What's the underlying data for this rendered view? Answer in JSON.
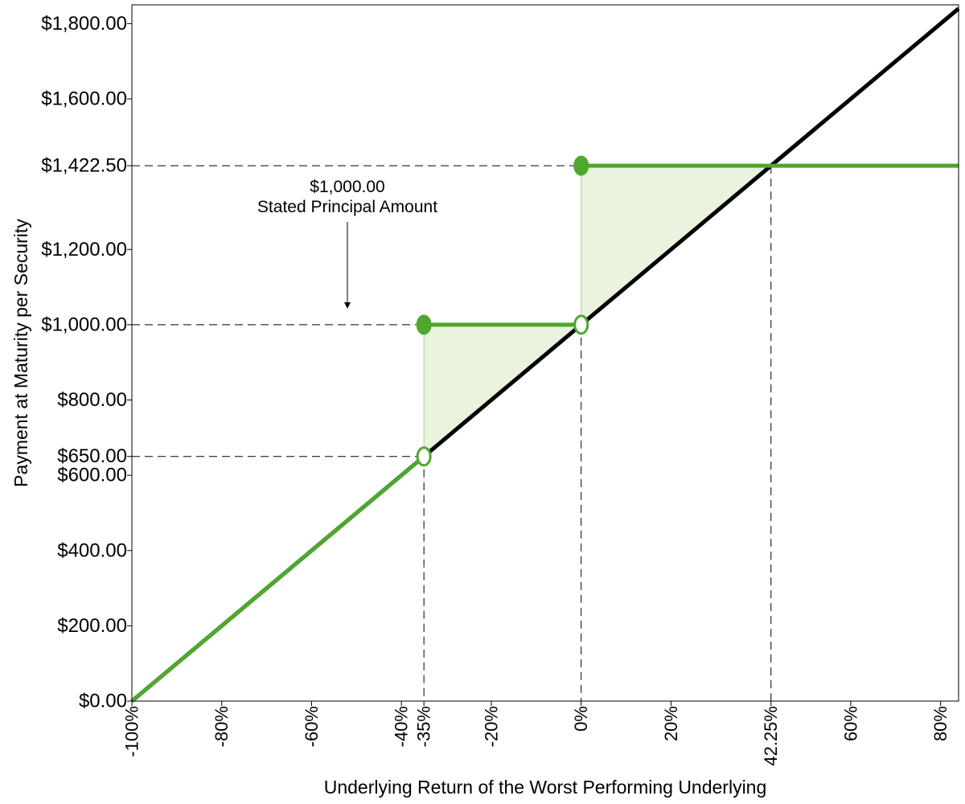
{
  "chart_data": {
    "type": "line",
    "xlabel": "Underlying Return of the Worst Performing Underlying",
    "ylabel": "Payment at Maturity per Security",
    "xlim": [
      -100,
      84
    ],
    "ylim": [
      0,
      1850
    ],
    "x_ticks": [
      {
        "value": -100,
        "label": "-100%"
      },
      {
        "value": -80,
        "label": "-80%"
      },
      {
        "value": -60,
        "label": "-60%"
      },
      {
        "value": -40,
        "label": "-40%"
      },
      {
        "value": -35,
        "label": "-35%"
      },
      {
        "value": -20,
        "label": "-20%"
      },
      {
        "value": 0,
        "label": "0%"
      },
      {
        "value": 20,
        "label": "20%"
      },
      {
        "value": 42.25,
        "label": "42.25%"
      },
      {
        "value": 60,
        "label": "60%"
      },
      {
        "value": 80,
        "label": "80%"
      }
    ],
    "y_ticks": [
      {
        "value": 0,
        "label": "$0.00"
      },
      {
        "value": 200,
        "label": "$200.00"
      },
      {
        "value": 400,
        "label": "$400.00"
      },
      {
        "value": 600,
        "label": "$600.00"
      },
      {
        "value": 650,
        "label": "$650.00"
      },
      {
        "value": 800,
        "label": "$800.00"
      },
      {
        "value": 1000,
        "label": "$1,000.00"
      },
      {
        "value": 1200,
        "label": "$1,200.00"
      },
      {
        "value": 1422.5,
        "label": "$1,422.50"
      },
      {
        "value": 1600,
        "label": "$1,600.00"
      },
      {
        "value": 1800,
        "label": "$1,800.00"
      }
    ],
    "series": [
      {
        "color": "#000000",
        "points": [
          [
            -100,
            0
          ],
          [
            84,
            1840
          ]
        ]
      },
      {
        "color": "#4ea72e",
        "segments": [
          [
            [
              -100,
              0
            ],
            [
              -35,
              650
            ]
          ],
          [
            [
              -35,
              1000
            ],
            [
              0,
              1000
            ]
          ],
          [
            [
              0,
              1422.5
            ],
            [
              84,
              1422.5
            ]
          ]
        ]
      }
    ],
    "markers": [
      {
        "x": -35,
        "y": 1000,
        "filled": true
      },
      {
        "x": -35,
        "y": 650,
        "filled": false
      },
      {
        "x": 0,
        "y": 1000,
        "filled": false
      },
      {
        "x": 0,
        "y": 1422.5,
        "filled": true
      }
    ],
    "shaded_regions": [
      [
        [
          -35,
          650
        ],
        [
          -35,
          1000
        ],
        [
          0,
          1000
        ]
      ],
      [
        [
          0,
          1000
        ],
        [
          0,
          1422.5
        ],
        [
          42.25,
          1422.5
        ]
      ]
    ],
    "reference_lines": {
      "horizontal": [
        {
          "y": 1422.5,
          "to_x": 0
        },
        {
          "y": 1000,
          "to_x": -35
        },
        {
          "y": 650,
          "to_x": -35
        }
      ],
      "vertical": [
        {
          "x": -35,
          "to_y": 650
        },
        {
          "x": 0,
          "to_y": 1000
        },
        {
          "x": 42.25,
          "to_y": 1422.5
        }
      ]
    },
    "annotation": {
      "line1": "$1,000.00",
      "line2": "Stated Principal Amount"
    },
    "colors": {
      "underlying": "#000000",
      "payment": "#4ea72e",
      "fill": "#e9f3de"
    },
    "grid": false,
    "legend": "none"
  }
}
